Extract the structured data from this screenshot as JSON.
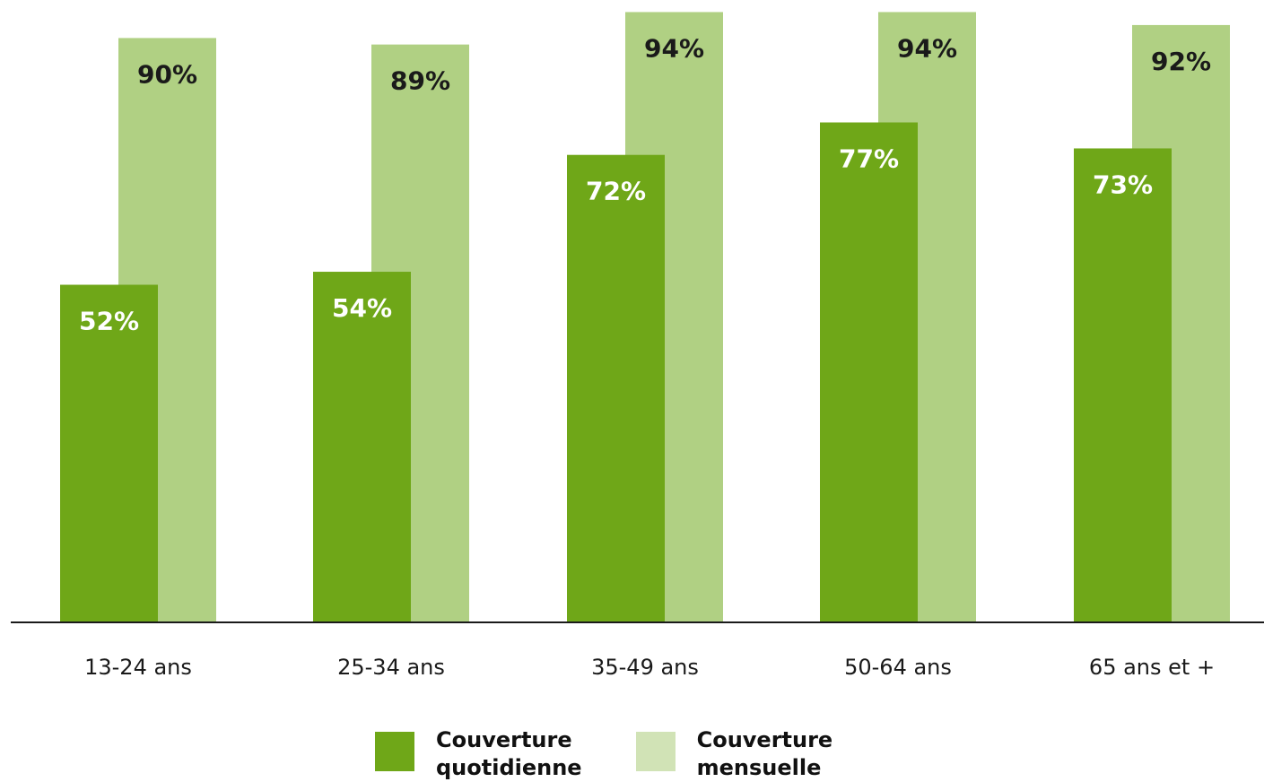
{
  "chart_data": {
    "type": "bar",
    "categories": [
      "13-24 ans",
      "25-34 ans",
      "35-49 ans",
      "50-64 ans",
      "65 ans et +"
    ],
    "series": [
      {
        "name": "Couverture quotidienne",
        "values": [
          52,
          54,
          72,
          77,
          73
        ],
        "color": "#6fa718",
        "label_color": "#ffffff"
      },
      {
        "name": "Couverture mensuelle",
        "values": [
          90,
          89,
          94,
          94,
          92
        ],
        "color": "#b0d083",
        "label_color": "#1a1a1a"
      }
    ],
    "data_labels": [
      [
        "52%",
        "54%",
        "72%",
        "77%",
        "73%"
      ],
      [
        "90%",
        "89%",
        "94%",
        "94%",
        "92%"
      ]
    ],
    "ylim": [
      0,
      100
    ],
    "grid": false,
    "legend_position": "bottom-center"
  },
  "legend": {
    "items": [
      {
        "line1": "Couverture",
        "line2": "quotidienne",
        "color": "#6fa718"
      },
      {
        "line1": "Couverture",
        "line2": "mensuelle",
        "color": "#d1e3b6"
      }
    ]
  }
}
